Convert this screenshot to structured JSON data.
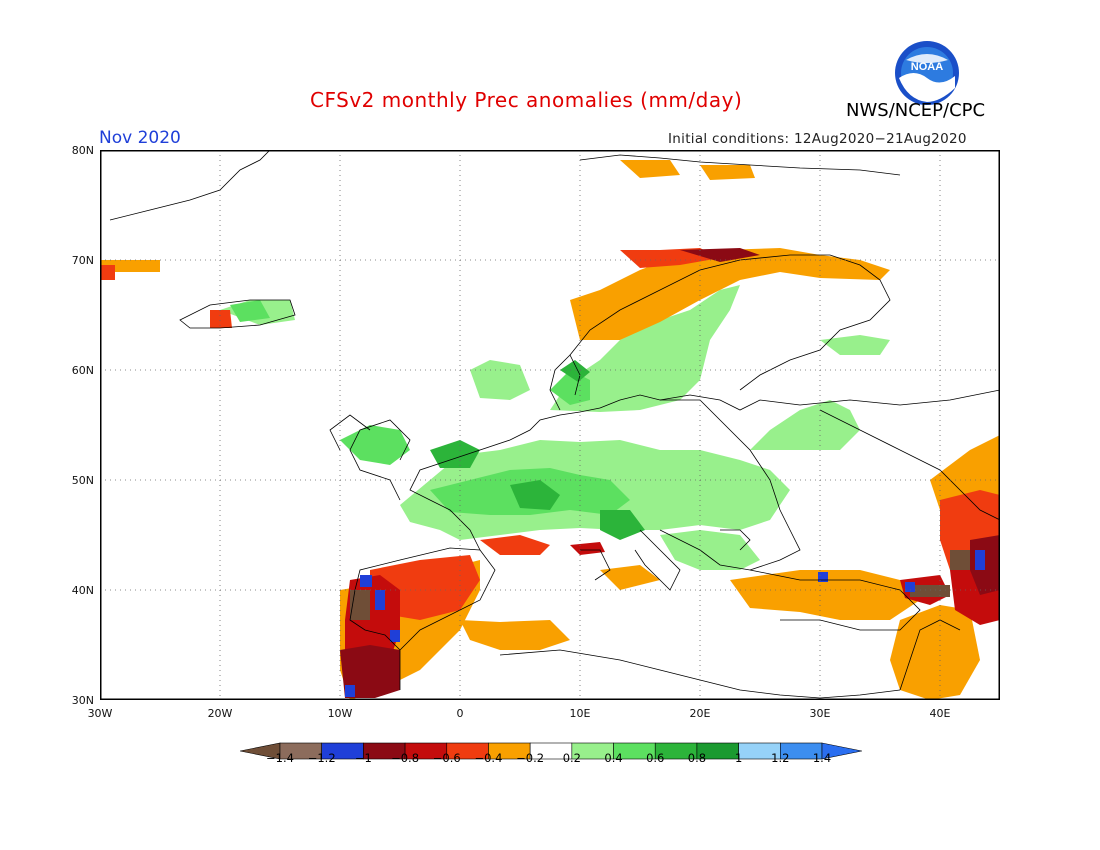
{
  "title": "CFSv2 monthly Prec anomalies (mm/day)",
  "agency": "NWS/NCEP/CPC",
  "logo_text": "NOAA",
  "month": "Nov 2020",
  "initial_conditions": "Initial conditions: 12Aug2020−21Aug2020",
  "latitude_labels": [
    "80N",
    "70N",
    "60N",
    "50N",
    "40N",
    "30N"
  ],
  "longitude_labels": [
    "30W",
    "20W",
    "10W",
    "0",
    "10E",
    "20E",
    "30E",
    "40E"
  ],
  "map_extent": {
    "lon": [
      -30,
      45
    ],
    "lat": [
      30,
      80
    ],
    "grid_step": 10
  },
  "colorbar": {
    "ticks": [
      "−1.4",
      "−1.2",
      "−1",
      "−0.8",
      "−0.6",
      "−0.4",
      "−0.2",
      "0.2",
      "0.4",
      "0.6",
      "0.8",
      "1",
      "1.2",
      "1.4"
    ],
    "colors": [
      "#6f4e37",
      "#8c6c5c",
      "#1f3fd8",
      "#8b0a14",
      "#c40c0c",
      "#f03c10",
      "#f9a000",
      "#ffffff",
      "#98f08c",
      "#5ce060",
      "#2cb43a",
      "#1b9a30",
      "#96d2f8",
      "#3c8ef0",
      "#2a6ef0"
    ]
  },
  "anomaly_regions": [
    {
      "name": "Iberia",
      "class": "dry"
    },
    {
      "name": "Northwest Africa",
      "class": "dry"
    },
    {
      "name": "Western Norway coast",
      "class": "dry"
    },
    {
      "name": "Turkey / Caucasus",
      "class": "dry"
    },
    {
      "name": "Central Europe",
      "class": "wet"
    },
    {
      "name": "British Isles",
      "class": "wet"
    },
    {
      "name": "Scandinavia interior",
      "class": "wet"
    },
    {
      "name": "Iceland",
      "class": "wet"
    }
  ]
}
